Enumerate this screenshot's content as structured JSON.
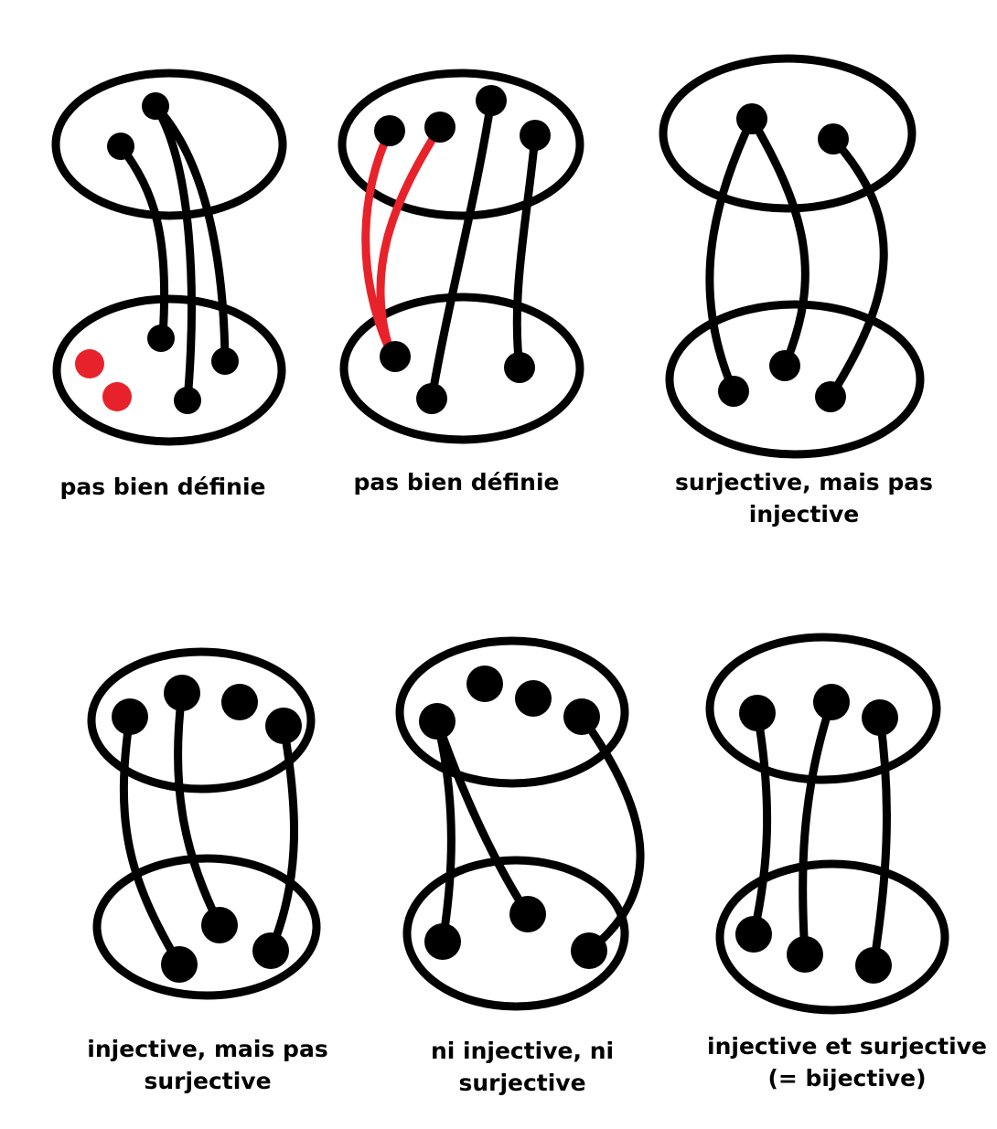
{
  "colors": {
    "ink": "#000000",
    "highlight": "#e8222a"
  },
  "diagrams": [
    {
      "caption": "pas bien définie"
    },
    {
      "caption": "pas bien définie"
    },
    {
      "caption": "surjective, mais pas\ninjective"
    },
    {
      "caption": "injective, mais pas\nsurjective"
    },
    {
      "caption": "ni injective, ni\nsurjective"
    },
    {
      "caption": "injective et surjective\n(= bijective)"
    }
  ]
}
